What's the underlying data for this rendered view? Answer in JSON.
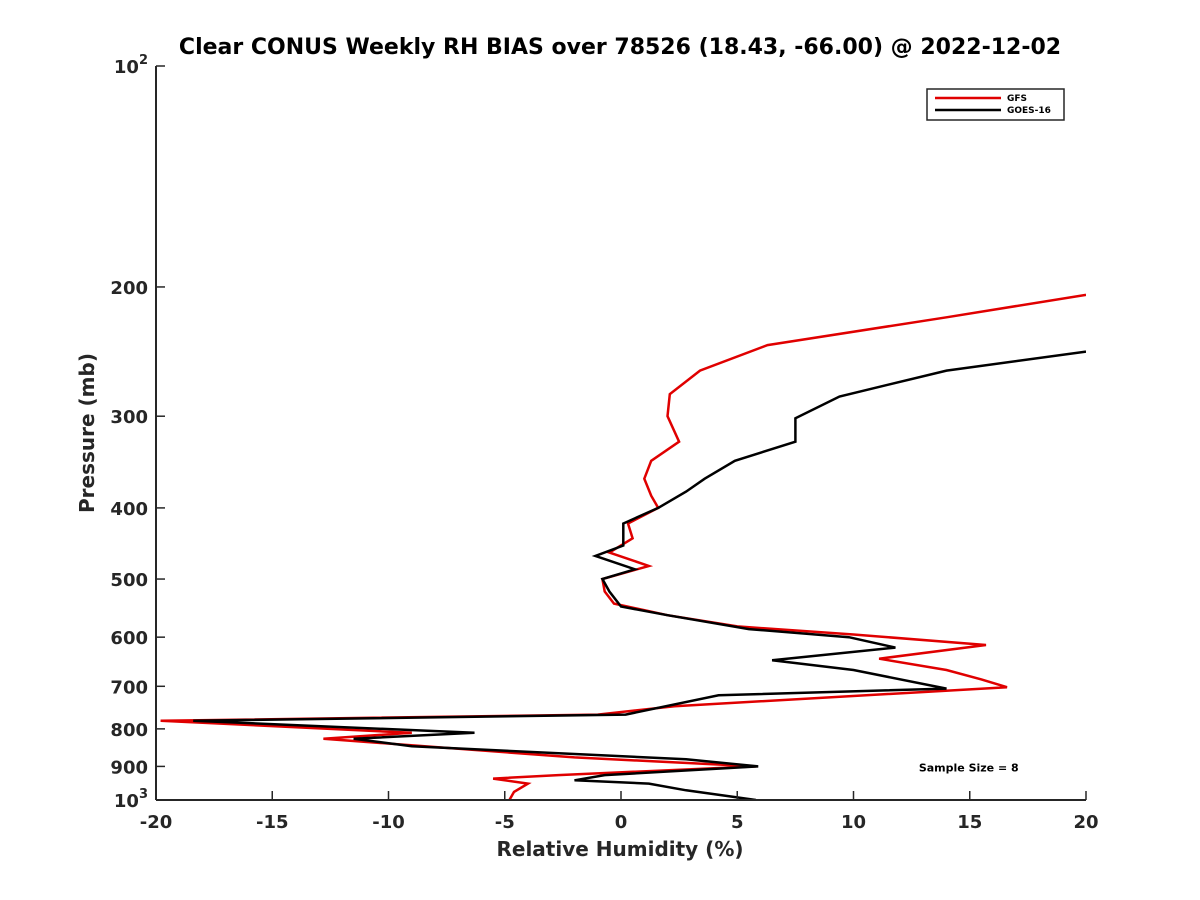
{
  "chart_data": {
    "type": "line",
    "title": "Clear CONUS Weekly RH BIAS over 78526 (18.43, -66.00) @ 2022-12-02",
    "xlabel": "Relative Humidity (%)",
    "ylabel": "Pressure (mb)",
    "xlim": [
      -20,
      20
    ],
    "ylim": [
      1000,
      100
    ],
    "yscale": "log",
    "y_reversed": true,
    "grid": false,
    "legend_position": "top-right",
    "x_ticks": [
      -20,
      -15,
      -10,
      -5,
      0,
      5,
      10,
      15,
      20
    ],
    "x_tick_labels": [
      "-20",
      "-15",
      "-10",
      "-5",
      "0",
      "5",
      "10",
      "15",
      "20"
    ],
    "y_ticks": [
      {
        "value": 100,
        "base": "10",
        "exp": "2"
      },
      {
        "value": 200,
        "label": "200"
      },
      {
        "value": 300,
        "label": "300"
      },
      {
        "value": 400,
        "label": "400"
      },
      {
        "value": 500,
        "label": "500"
      },
      {
        "value": 600,
        "label": "600"
      },
      {
        "value": 700,
        "label": "700"
      },
      {
        "value": 800,
        "label": "800"
      },
      {
        "value": 900,
        "label": "900"
      },
      {
        "value": 1000,
        "base": "10",
        "exp": "3"
      }
    ],
    "series": [
      {
        "name": "GFS",
        "color": "#e00000",
        "points": [
          {
            "x": -4.8,
            "y": 1000
          },
          {
            "x": -4.6,
            "y": 975
          },
          {
            "x": -4.0,
            "y": 950
          },
          {
            "x": -5.5,
            "y": 935
          },
          {
            "x": -2.7,
            "y": 925
          },
          {
            "x": 5.8,
            "y": 900
          },
          {
            "x": -2.0,
            "y": 875
          },
          {
            "x": -12.8,
            "y": 825
          },
          {
            "x": -9.0,
            "y": 810
          },
          {
            "x": -19.8,
            "y": 780
          },
          {
            "x": -1.0,
            "y": 765
          },
          {
            "x": 2.3,
            "y": 745
          },
          {
            "x": 16.6,
            "y": 702
          },
          {
            "x": 15.5,
            "y": 685
          },
          {
            "x": 14.0,
            "y": 665
          },
          {
            "x": 11.1,
            "y": 642
          },
          {
            "x": 15.7,
            "y": 615
          },
          {
            "x": 10.0,
            "y": 595
          },
          {
            "x": 5.0,
            "y": 580
          },
          {
            "x": 2.0,
            "y": 560
          },
          {
            "x": -0.3,
            "y": 540
          },
          {
            "x": -0.7,
            "y": 520
          },
          {
            "x": -0.8,
            "y": 500
          },
          {
            "x": 1.2,
            "y": 480
          },
          {
            "x": -0.5,
            "y": 460
          },
          {
            "x": 0.5,
            "y": 440
          },
          {
            "x": 0.3,
            "y": 420
          },
          {
            "x": 1.6,
            "y": 400
          },
          {
            "x": 1.3,
            "y": 385
          },
          {
            "x": 1.0,
            "y": 365
          },
          {
            "x": 1.3,
            "y": 345
          },
          {
            "x": 2.5,
            "y": 325
          },
          {
            "x": 2.0,
            "y": 300
          },
          {
            "x": 2.1,
            "y": 280
          },
          {
            "x": 3.4,
            "y": 260
          },
          {
            "x": 6.3,
            "y": 240
          },
          {
            "x": 14.0,
            "y": 220
          },
          {
            "x": 20.0,
            "y": 205
          }
        ]
      },
      {
        "name": "GOES-16",
        "color": "#000000",
        "points": [
          {
            "x": 5.8,
            "y": 1000
          },
          {
            "x": 2.8,
            "y": 970
          },
          {
            "x": 1.2,
            "y": 950
          },
          {
            "x": -2.0,
            "y": 940
          },
          {
            "x": -0.7,
            "y": 925
          },
          {
            "x": 5.9,
            "y": 900
          },
          {
            "x": 2.8,
            "y": 880
          },
          {
            "x": -9.0,
            "y": 845
          },
          {
            "x": -11.5,
            "y": 825
          },
          {
            "x": -6.3,
            "y": 810
          },
          {
            "x": -18.4,
            "y": 780
          },
          {
            "x": 0.2,
            "y": 765
          },
          {
            "x": 4.2,
            "y": 720
          },
          {
            "x": 14.0,
            "y": 705
          },
          {
            "x": 10.0,
            "y": 665
          },
          {
            "x": 6.5,
            "y": 645
          },
          {
            "x": 11.8,
            "y": 620
          },
          {
            "x": 9.8,
            "y": 600
          },
          {
            "x": 5.5,
            "y": 585
          },
          {
            "x": 2.0,
            "y": 560
          },
          {
            "x": 0.0,
            "y": 545
          },
          {
            "x": -0.5,
            "y": 520
          },
          {
            "x": -0.8,
            "y": 500
          },
          {
            "x": 0.6,
            "y": 485
          },
          {
            "x": -1.1,
            "y": 465
          },
          {
            "x": 0.1,
            "y": 450
          },
          {
            "x": 0.1,
            "y": 420
          },
          {
            "x": 1.6,
            "y": 400
          },
          {
            "x": 2.8,
            "y": 380
          },
          {
            "x": 3.6,
            "y": 365
          },
          {
            "x": 4.9,
            "y": 345
          },
          {
            "x": 7.5,
            "y": 325
          },
          {
            "x": 7.5,
            "y": 302
          },
          {
            "x": 9.4,
            "y": 282
          },
          {
            "x": 14.0,
            "y": 260
          },
          {
            "x": 20.0,
            "y": 245
          }
        ]
      }
    ],
    "annotations": [
      {
        "text": "Sample Size = 8",
        "x": 15,
        "y": 900
      }
    ]
  }
}
